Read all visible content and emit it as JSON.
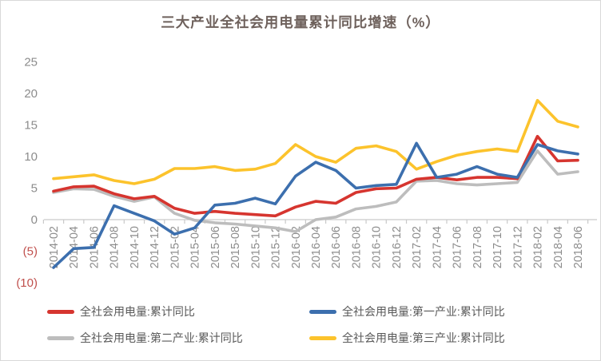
{
  "page": {
    "title": "三大产业全社会用电量累计同比增速（%）"
  },
  "chart_data": {
    "type": "line",
    "title": "三大产业全社会用电量累计同比增速（%）",
    "categories": [
      "2014-02",
      "2014-04",
      "2014-06",
      "2014-08",
      "2014-10",
      "2014-12",
      "2015-02",
      "2015-04",
      "2015-06",
      "2015-08",
      "2015-10",
      "2015-12",
      "2016-02",
      "2016-04",
      "2016-06",
      "2016-08",
      "2016-10",
      "2016-12",
      "2017-02",
      "2017-04",
      "2017-06",
      "2017-08",
      "2017-10",
      "2017-12",
      "2018-02",
      "2018-04",
      "2018-06"
    ],
    "series": [
      {
        "name": "全社会用电量:累计同比",
        "color": "#D6352F",
        "values": [
          4.5,
          5.2,
          5.3,
          4.1,
          3.3,
          3.7,
          1.8,
          1.0,
          1.3,
          1.0,
          0.8,
          0.6,
          2.0,
          2.9,
          2.6,
          4.3,
          4.9,
          5.0,
          6.4,
          6.7,
          6.3,
          6.7,
          6.7,
          6.5,
          13.2,
          9.3,
          9.4
        ]
      },
      {
        "name": "全社会用电量:第一产业:累计同比",
        "color": "#3C6FAE",
        "values": [
          -7.6,
          -4.6,
          -4.4,
          2.2,
          1.0,
          -0.2,
          -2.3,
          -1.3,
          2.3,
          2.6,
          3.4,
          2.5,
          6.9,
          9.1,
          7.8,
          5.0,
          5.4,
          5.6,
          12.1,
          6.7,
          7.2,
          8.4,
          7.2,
          6.7,
          11.9,
          10.9,
          10.4
        ]
      },
      {
        "name": "全社会用电量:第二产业:累计同比",
        "color": "#BDBDBD",
        "values": [
          4.3,
          4.9,
          4.8,
          3.7,
          2.9,
          3.6,
          1.0,
          -0.1,
          -0.5,
          -0.7,
          -1.0,
          -1.3,
          -1.9,
          0.0,
          0.4,
          1.7,
          2.1,
          2.8,
          6.1,
          6.2,
          5.7,
          5.5,
          5.7,
          5.9,
          10.9,
          7.2,
          7.6
        ]
      },
      {
        "name": "全社会用电量:第三产业:累计同比",
        "color": "#FCC32C",
        "values": [
          6.5,
          6.8,
          7.1,
          6.2,
          5.7,
          6.4,
          8.1,
          8.1,
          8.4,
          7.8,
          8.0,
          8.9,
          11.9,
          10.0,
          9.1,
          11.3,
          11.7,
          10.8,
          8.0,
          9.2,
          10.2,
          10.8,
          11.2,
          10.8,
          18.9,
          15.6,
          14.7
        ]
      }
    ],
    "ylim": [
      -10,
      25
    ],
    "yticks": [
      25,
      20,
      15,
      10,
      5,
      0,
      -5,
      -10
    ],
    "ytick_labels": [
      "25",
      "20",
      "15",
      "10",
      "5",
      "0",
      "(5)",
      "(10)"
    ],
    "tick_label_color": "#8C8C8C",
    "negative_label_color": "#C0504D",
    "axis_color": "#C9C9C9",
    "grid": false,
    "legend_position": "bottom"
  }
}
